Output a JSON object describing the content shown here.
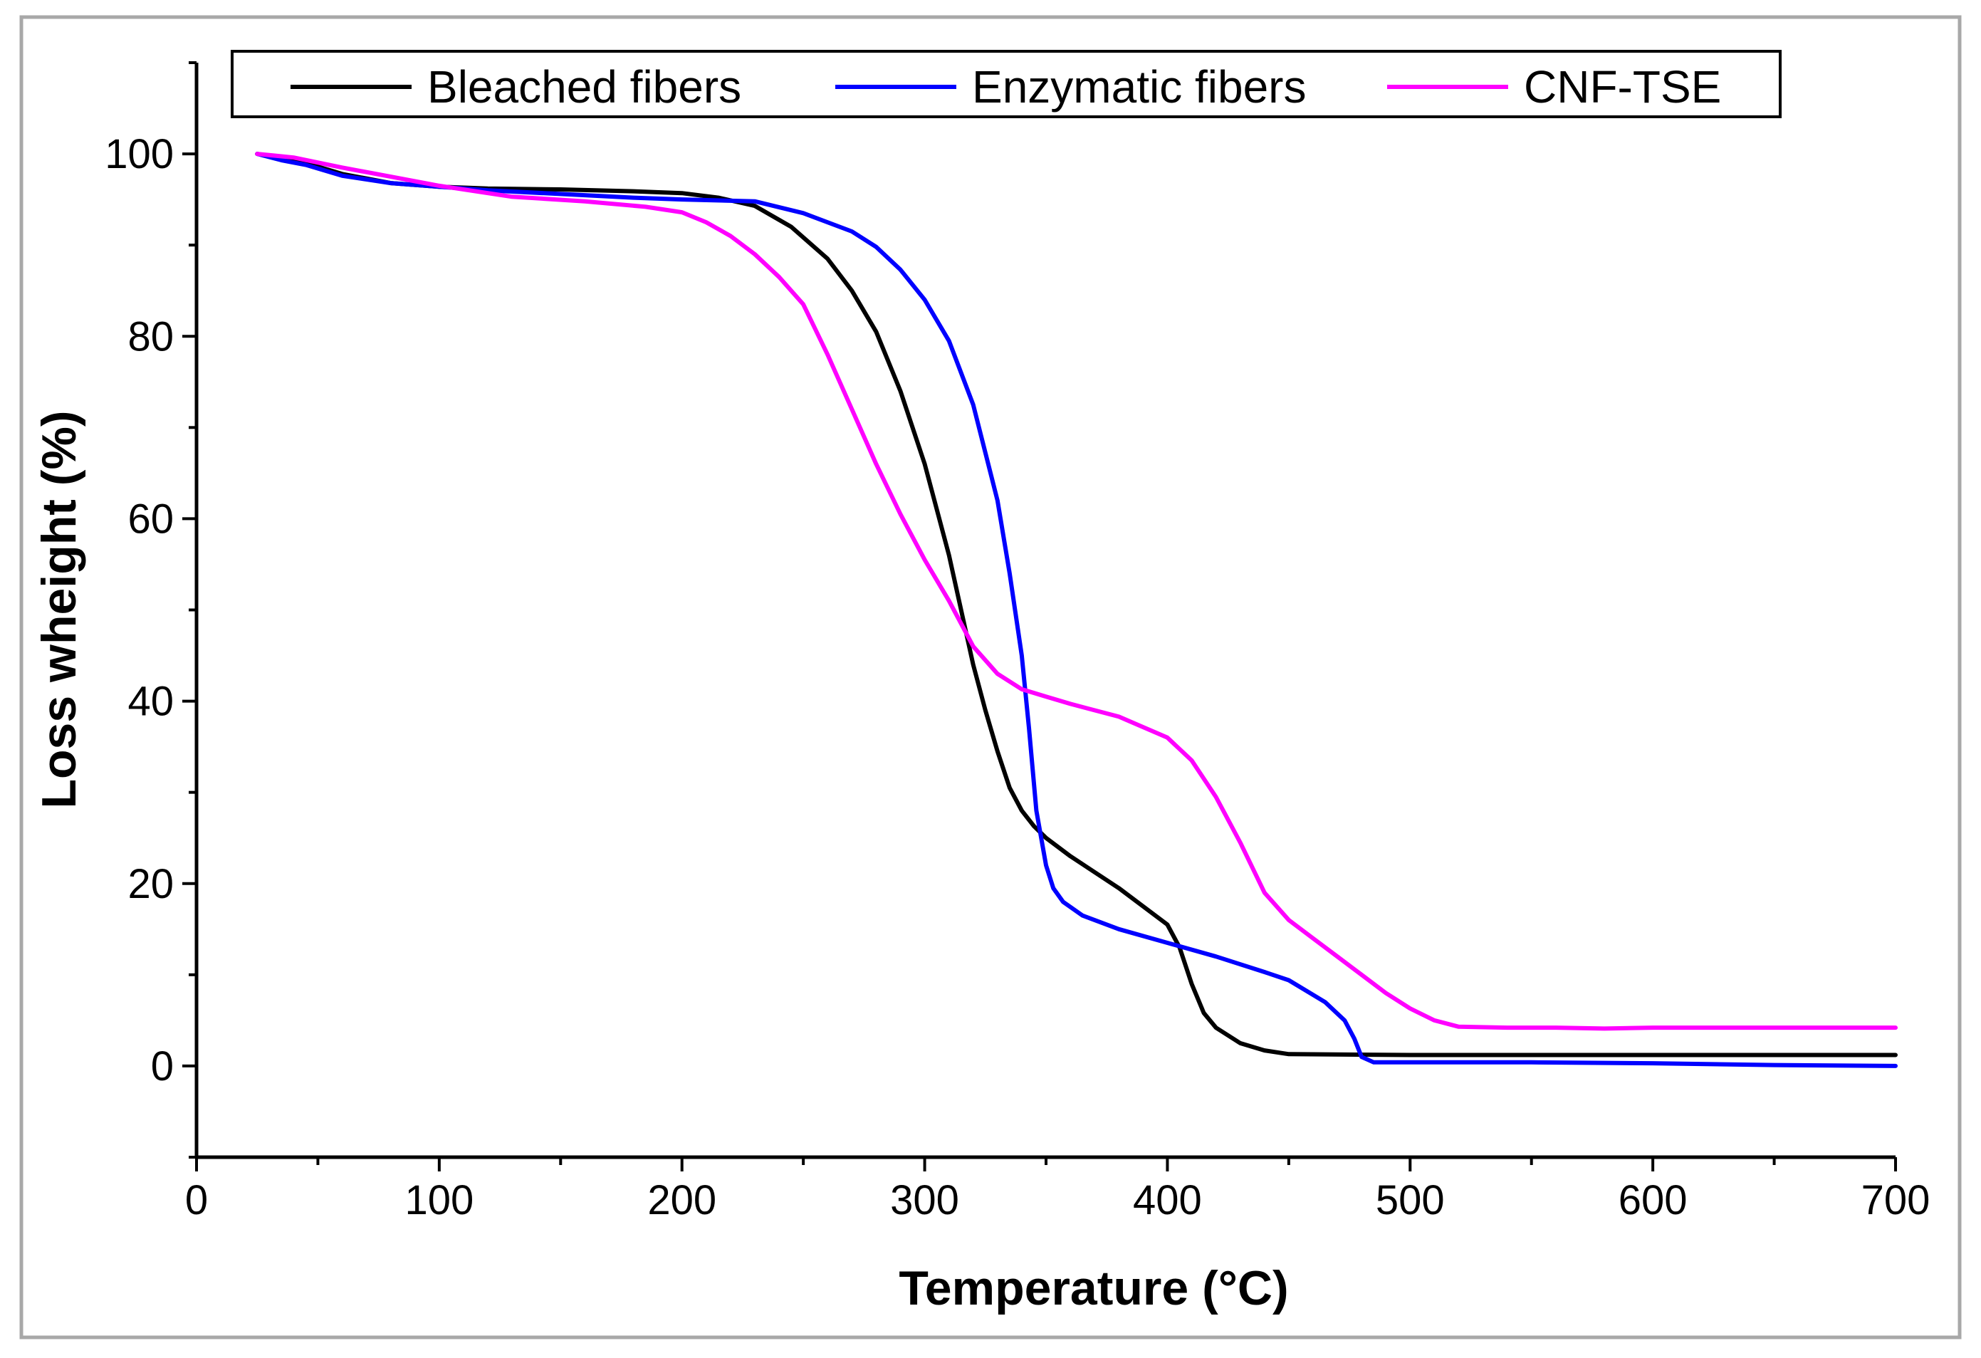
{
  "chart_data": {
    "type": "line",
    "title": "",
    "xlabel": "Temperature (°C)",
    "ylabel": "Loss wheight (%)",
    "xlim": [
      0,
      700
    ],
    "ylim": [
      -10,
      110
    ],
    "xticks": [
      0,
      100,
      200,
      300,
      400,
      500,
      600,
      700
    ],
    "yticks": [
      0,
      20,
      40,
      60,
      80,
      100
    ],
    "xtick_labels": [
      "0",
      "100",
      "200",
      "300",
      "400",
      "500",
      "600",
      "700"
    ],
    "ytick_labels": [
      "0",
      "20",
      "40",
      "60",
      "80",
      "100"
    ],
    "grid": false,
    "legend_position": "top",
    "series": [
      {
        "name": "Bleached fibers",
        "color": "#000000",
        "x": [
          25,
          35,
          45,
          60,
          80,
          100,
          120,
          150,
          180,
          200,
          215,
          230,
          245,
          260,
          270,
          280,
          290,
          300,
          310,
          315,
          320,
          325,
          330,
          335,
          340,
          345,
          350,
          360,
          380,
          400,
          405,
          410,
          415,
          420,
          430,
          440,
          450,
          500,
          550,
          600,
          700
        ],
        "y": [
          100,
          99.5,
          99,
          97.8,
          96.8,
          96.4,
          96.2,
          96.1,
          95.9,
          95.7,
          95.2,
          94.3,
          92,
          88.5,
          85,
          80.5,
          74,
          66,
          56,
          50,
          44,
          39,
          34.5,
          30.5,
          28,
          26.3,
          25,
          23,
          19.5,
          15.5,
          13,
          9,
          5.8,
          4.2,
          2.5,
          1.7,
          1.3,
          1.2,
          1.2,
          1.2,
          1.2
        ]
      },
      {
        "name": "Enzymatic fibers",
        "color": "#0000ff",
        "x": [
          25,
          35,
          45,
          60,
          80,
          100,
          120,
          150,
          180,
          200,
          230,
          250,
          270,
          280,
          290,
          300,
          310,
          320,
          330,
          335,
          340,
          343,
          346,
          350,
          353,
          357,
          365,
          380,
          400,
          420,
          440,
          450,
          465,
          473,
          477,
          480,
          485,
          500,
          550,
          600,
          650,
          700
        ],
        "y": [
          100,
          99.3,
          98.8,
          97.6,
          96.8,
          96.4,
          96,
          95.6,
          95.2,
          95,
          94.8,
          93.5,
          91.5,
          89.8,
          87.3,
          84,
          79.5,
          72.5,
          62,
          54,
          45,
          37,
          28,
          22,
          19.5,
          18,
          16.5,
          15,
          13.5,
          12,
          10.3,
          9.4,
          7,
          5,
          3,
          1,
          0.4,
          0.4,
          0.4,
          0.3,
          0.1,
          0
        ]
      },
      {
        "name": "CNF-TSE",
        "color": "#ff00ff",
        "x": [
          25,
          40,
          60,
          80,
          100,
          130,
          160,
          185,
          200,
          210,
          220,
          230,
          240,
          250,
          260,
          270,
          280,
          290,
          300,
          310,
          320,
          330,
          340,
          350,
          360,
          380,
          400,
          410,
          420,
          430,
          440,
          450,
          460,
          470,
          480,
          490,
          500,
          510,
          520,
          540,
          560,
          580,
          600,
          650,
          700
        ],
        "y": [
          100,
          99.6,
          98.5,
          97.5,
          96.5,
          95.3,
          94.8,
          94.2,
          93.6,
          92.5,
          91,
          89,
          86.5,
          83.5,
          78,
          72,
          66,
          60.5,
          55.5,
          51,
          46,
          43,
          41.3,
          40.5,
          39.7,
          38.3,
          36,
          33.5,
          29.5,
          24.5,
          19,
          16,
          14,
          12,
          10,
          8,
          6.3,
          5,
          4.3,
          4.2,
          4.2,
          4.1,
          4.2,
          4.2,
          4.2
        ]
      }
    ]
  }
}
